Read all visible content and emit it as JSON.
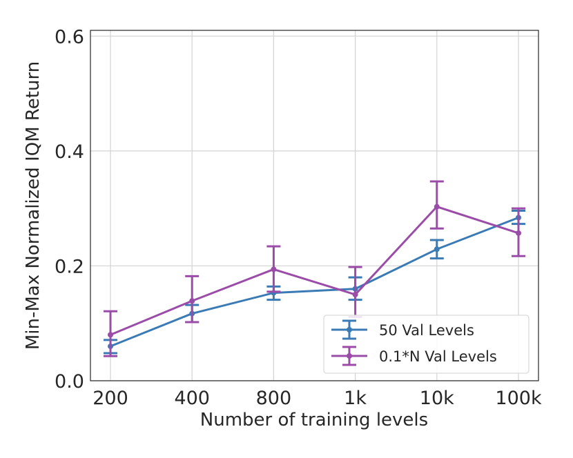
{
  "chart_data": {
    "type": "line",
    "title": "",
    "xlabel": "Number of training levels",
    "ylabel": "Min-Max Normalized IQM Return",
    "categories": [
      "200",
      "400",
      "800",
      "1k",
      "10k",
      "100k"
    ],
    "ylim": [
      0,
      0.61
    ],
    "yticks": [
      0.0,
      0.2,
      0.4,
      0.6
    ],
    "ytick_labels": [
      "0.0",
      "0.2",
      "0.4",
      "0.6"
    ],
    "grid": true,
    "legend_position": "lower-right",
    "series": [
      {
        "name": "50 Val Levels",
        "color": "#3a7ab5",
        "values": [
          0.06,
          0.117,
          0.153,
          0.16,
          0.229,
          0.284
        ],
        "err_low": [
          0.048,
          0.102,
          0.141,
          0.141,
          0.213,
          0.273
        ],
        "err_high": [
          0.071,
          0.132,
          0.164,
          0.18,
          0.245,
          0.296
        ]
      },
      {
        "name": "0.1*N Val Levels",
        "color": "#9b4ca8",
        "values": [
          0.08,
          0.139,
          0.194,
          0.15,
          0.303,
          0.257
        ],
        "err_low": [
          0.043,
          0.102,
          0.155,
          0.111,
          0.265,
          0.217
        ],
        "err_high": [
          0.121,
          0.182,
          0.234,
          0.198,
          0.347,
          0.3
        ]
      }
    ]
  }
}
